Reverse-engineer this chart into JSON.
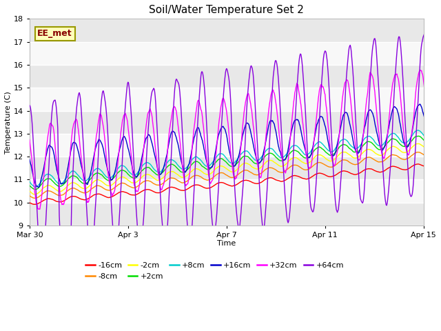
{
  "title": "Soil/Water Temperature Set 2",
  "xlabel": "Time",
  "ylabel": "Temperature (C)",
  "ylim": [
    9.0,
    18.0
  ],
  "yticks": [
    9.0,
    10.0,
    11.0,
    12.0,
    13.0,
    14.0,
    15.0,
    16.0,
    17.0,
    18.0
  ],
  "n_days": 17,
  "series": [
    {
      "label": "-16cm",
      "color": "#ff0000",
      "base_start": 10.0,
      "base_end": 11.7,
      "amp": 0.1,
      "phase_shift": 0.0
    },
    {
      "label": "-8cm",
      "color": "#ff8800",
      "base_start": 10.3,
      "base_end": 12.2,
      "amp": 0.13,
      "phase_shift": 0.0
    },
    {
      "label": "-2cm",
      "color": "#ffff00",
      "base_start": 10.5,
      "base_end": 12.55,
      "amp": 0.16,
      "phase_shift": 0.0
    },
    {
      "label": "+2cm",
      "color": "#00dd00",
      "base_start": 10.75,
      "base_end": 12.85,
      "amp": 0.2,
      "phase_shift": 0.0
    },
    {
      "label": "+8cm",
      "color": "#00cccc",
      "base_start": 10.9,
      "base_end": 13.05,
      "amp": 0.24,
      "phase_shift": 0.0
    },
    {
      "label": "+16cm",
      "color": "#0000cc",
      "base_start": 11.5,
      "base_end": 13.5,
      "amp": 0.9,
      "phase_shift": 0.08
    },
    {
      "label": "+32cm",
      "color": "#ff00ff",
      "base_start": 11.5,
      "base_end": 14.2,
      "amp": 1.8,
      "phase_shift": 0.12
    },
    {
      "label": "+64cm",
      "color": "#8800dd",
      "base_start": 10.8,
      "base_end": 14.0,
      "amp": 3.5,
      "phase_shift": 0.25
    }
  ],
  "watermark_text": "EE_met",
  "plot_bg_light": "#f2f2f2",
  "plot_bg_dark": "#e0e0e0",
  "title_fontsize": 11,
  "axis_label_fontsize": 8,
  "tick_fontsize": 8,
  "legend_fontsize": 8,
  "linewidth": 1.0,
  "xtick_positions": [
    0,
    4,
    8,
    12,
    16
  ],
  "xtick_labels": [
    "Mar 30",
    "Apr 3",
    "Apr 7",
    "Apr 11",
    "Apr 15"
  ]
}
